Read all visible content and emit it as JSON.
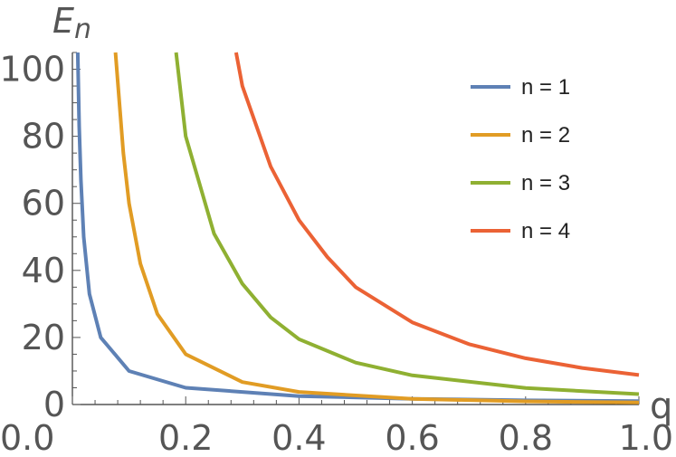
{
  "chart_data": {
    "type": "line",
    "title": "",
    "ylabel_main": "E",
    "ylabel_sub": "n",
    "xlabel": "q",
    "xlim": [
      0,
      1
    ],
    "ylim": [
      0,
      105
    ],
    "x_ticks": [
      "0.0",
      "0.2",
      "0.4",
      "0.6",
      "0.8",
      "1.0"
    ],
    "y_ticks": [
      "0",
      "20",
      "40",
      "60",
      "80",
      "100"
    ],
    "legend_position": "top-right",
    "grid": false,
    "series": [
      {
        "name": "n = 1",
        "n": 1,
        "color": "#5E81B5",
        "x": [
          0.0095,
          0.012,
          0.015,
          0.02,
          0.03,
          0.05,
          0.1,
          0.2,
          0.4,
          0.6,
          0.8,
          1.0
        ],
        "y": [
          105,
          83,
          67,
          50,
          33,
          20,
          10,
          5,
          2.5,
          1.7,
          1.25,
          1.0
        ]
      },
      {
        "name": "n = 2",
        "n": 2,
        "color": "#E19C24",
        "x": [
          0.076,
          0.09,
          0.1,
          0.12,
          0.15,
          0.2,
          0.3,
          0.4,
          0.6,
          0.8,
          1.0
        ],
        "y": [
          105,
          75,
          60,
          42,
          27,
          15,
          6.7,
          3.75,
          1.67,
          0.94,
          0.6
        ]
      },
      {
        "name": "n = 3",
        "n": 3,
        "color": "#8FB032",
        "x": [
          0.183,
          0.2,
          0.25,
          0.3,
          0.35,
          0.4,
          0.5,
          0.6,
          0.8,
          1.0
        ],
        "y": [
          105,
          80,
          51,
          36,
          26,
          19.5,
          12.5,
          8.7,
          4.9,
          3.1
        ]
      },
      {
        "name": "n = 4",
        "n": 4,
        "color": "#EB6235",
        "x": [
          0.289,
          0.3,
          0.35,
          0.4,
          0.45,
          0.5,
          0.6,
          0.7,
          0.8,
          0.9,
          1.0
        ],
        "y": [
          105,
          95,
          71,
          55,
          44,
          35,
          24.5,
          18,
          13.8,
          10.9,
          8.8
        ]
      }
    ]
  }
}
